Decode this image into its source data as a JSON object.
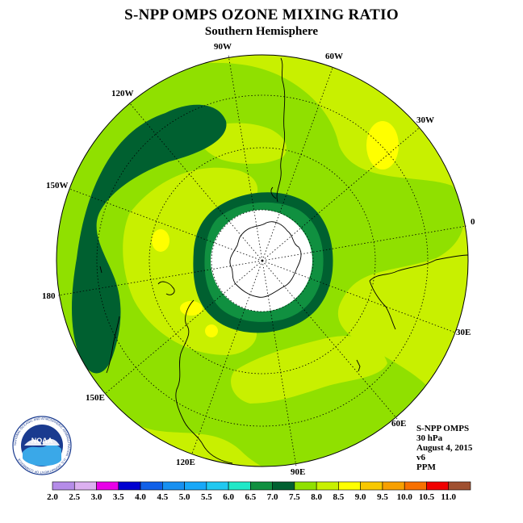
{
  "title": "S-NPP OMPS OZONE MIXING RATIO",
  "subtitle": "Southern Hemisphere",
  "longitude_labels": {
    "w90": "90W",
    "w60": "60W",
    "w30": "30W",
    "e0": "0",
    "e30": "30E",
    "e60": "60E",
    "e90": "90E",
    "e120": "120E",
    "e150": "150E",
    "e180": "180",
    "w150": "150W",
    "w120": "120W"
  },
  "info": {
    "instrument": "S-NPP OMPS",
    "level": "30 hPa",
    "date": "August 4, 2015",
    "version": "v6",
    "units": "PPM"
  },
  "logo": {
    "text": "NOAA",
    "ring_text": "NATIONAL OCEANIC AND ATMOSPHERIC ADMINISTRATION · U.S. DEPARTMENT OF COMMERCE"
  },
  "colorbar": {
    "labels": [
      "2.0",
      "2.5",
      "3.0",
      "3.5",
      "4.0",
      "4.5",
      "5.0",
      "5.5",
      "6.0",
      "6.5",
      "7.0",
      "7.5",
      "8.0",
      "8.5",
      "9.0",
      "9.5",
      "10.0",
      "10.5",
      "11.0"
    ],
    "colors": [
      "#b58ce8",
      "#dcb0f0",
      "#e800e8",
      "#0000d0",
      "#1060e8",
      "#1890f0",
      "#18a8f8",
      "#20c8f0",
      "#20e8c8",
      "#109040",
      "#006030",
      "#90e000",
      "#c8f000",
      "#ffff00",
      "#f8c800",
      "#f8a000",
      "#f87000",
      "#f00000",
      "#a05030"
    ]
  }
}
